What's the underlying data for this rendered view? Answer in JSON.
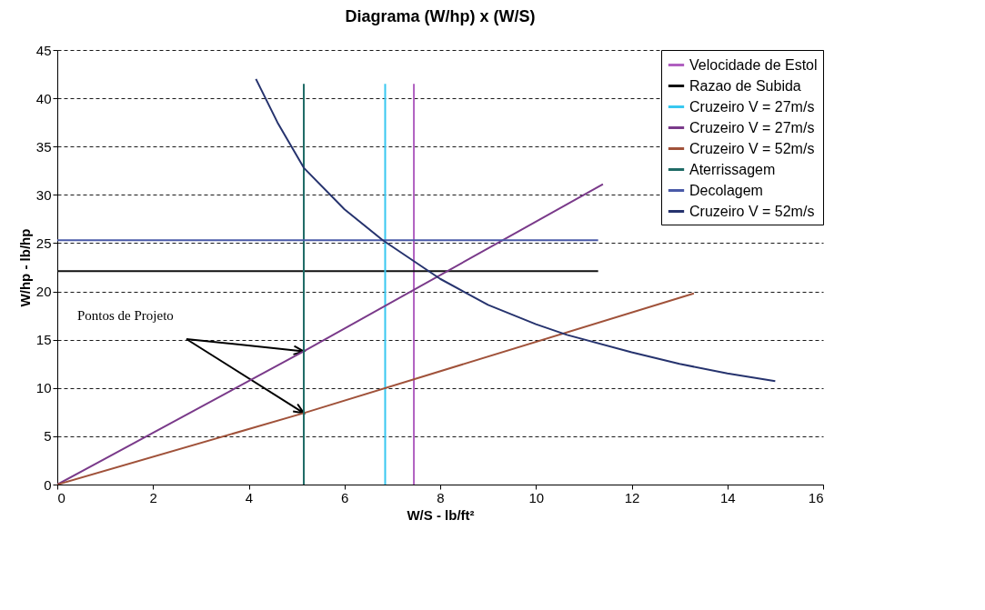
{
  "chart_data": {
    "type": "line",
    "title": "Diagrama  (W/hp) x (W/S)",
    "xlabel": "W/S - lb/ft²",
    "ylabel": "W/hp - lb/hp",
    "xlim": [
      0,
      16
    ],
    "xticks": [
      0,
      2,
      4,
      6,
      8,
      10,
      12,
      14,
      16
    ],
    "ylim": [
      0,
      45
    ],
    "yticks": [
      0,
      5,
      10,
      15,
      20,
      25,
      30,
      35,
      40,
      45
    ],
    "grid": "y",
    "legend": "top right",
    "marker": "none",
    "line_style": "solid",
    "annotations": [
      "Pontos de Projeto"
    ],
    "series": [
      {
        "name": "Velocidade de Estol",
        "color": "#b060c0",
        "x": [
          7.45,
          7.45
        ],
        "values": [
          0,
          41.5
        ]
      },
      {
        "name": "Razao de Subida",
        "color": "#111111",
        "x": [
          0,
          11.3
        ],
        "values": [
          22.1,
          22.1
        ]
      },
      {
        "name": "Cruzeiro V = 27m/s",
        "color": "#38c8f0",
        "x": [
          6.85,
          6.85
        ],
        "values": [
          0,
          41.5
        ]
      },
      {
        "name": "Cruzeiro V = 27m/s",
        "color": "#7a3a8a",
        "x": [
          0,
          5.15,
          11.4
        ],
        "values": [
          0,
          13.8,
          31.1
        ]
      },
      {
        "name": "Cruzeiro V = 52m/s",
        "color": "#a0523a",
        "x": [
          0,
          5.15,
          13.3
        ],
        "values": [
          0,
          7.4,
          19.8
        ]
      },
      {
        "name": "Aterrissagem",
        "color": "#1f6b66",
        "x": [
          5.15,
          5.15
        ],
        "values": [
          0,
          41.5
        ]
      },
      {
        "name": "Decolagem",
        "color": "#4a5aa8",
        "x": [
          0,
          11.3
        ],
        "values": [
          25.3,
          25.3
        ]
      },
      {
        "name": "Cruzeiro V = 52m/s",
        "color": "#26336e",
        "x": [
          4.15,
          4.6,
          5.15,
          6,
          6.8,
          8,
          9,
          10,
          10.65,
          12,
          13,
          14,
          15
        ],
        "values": [
          42,
          37.5,
          32.8,
          28.5,
          25.3,
          21.3,
          18.6,
          16.6,
          15.5,
          13.7,
          12.5,
          11.5,
          10.7
        ]
      }
    ]
  }
}
